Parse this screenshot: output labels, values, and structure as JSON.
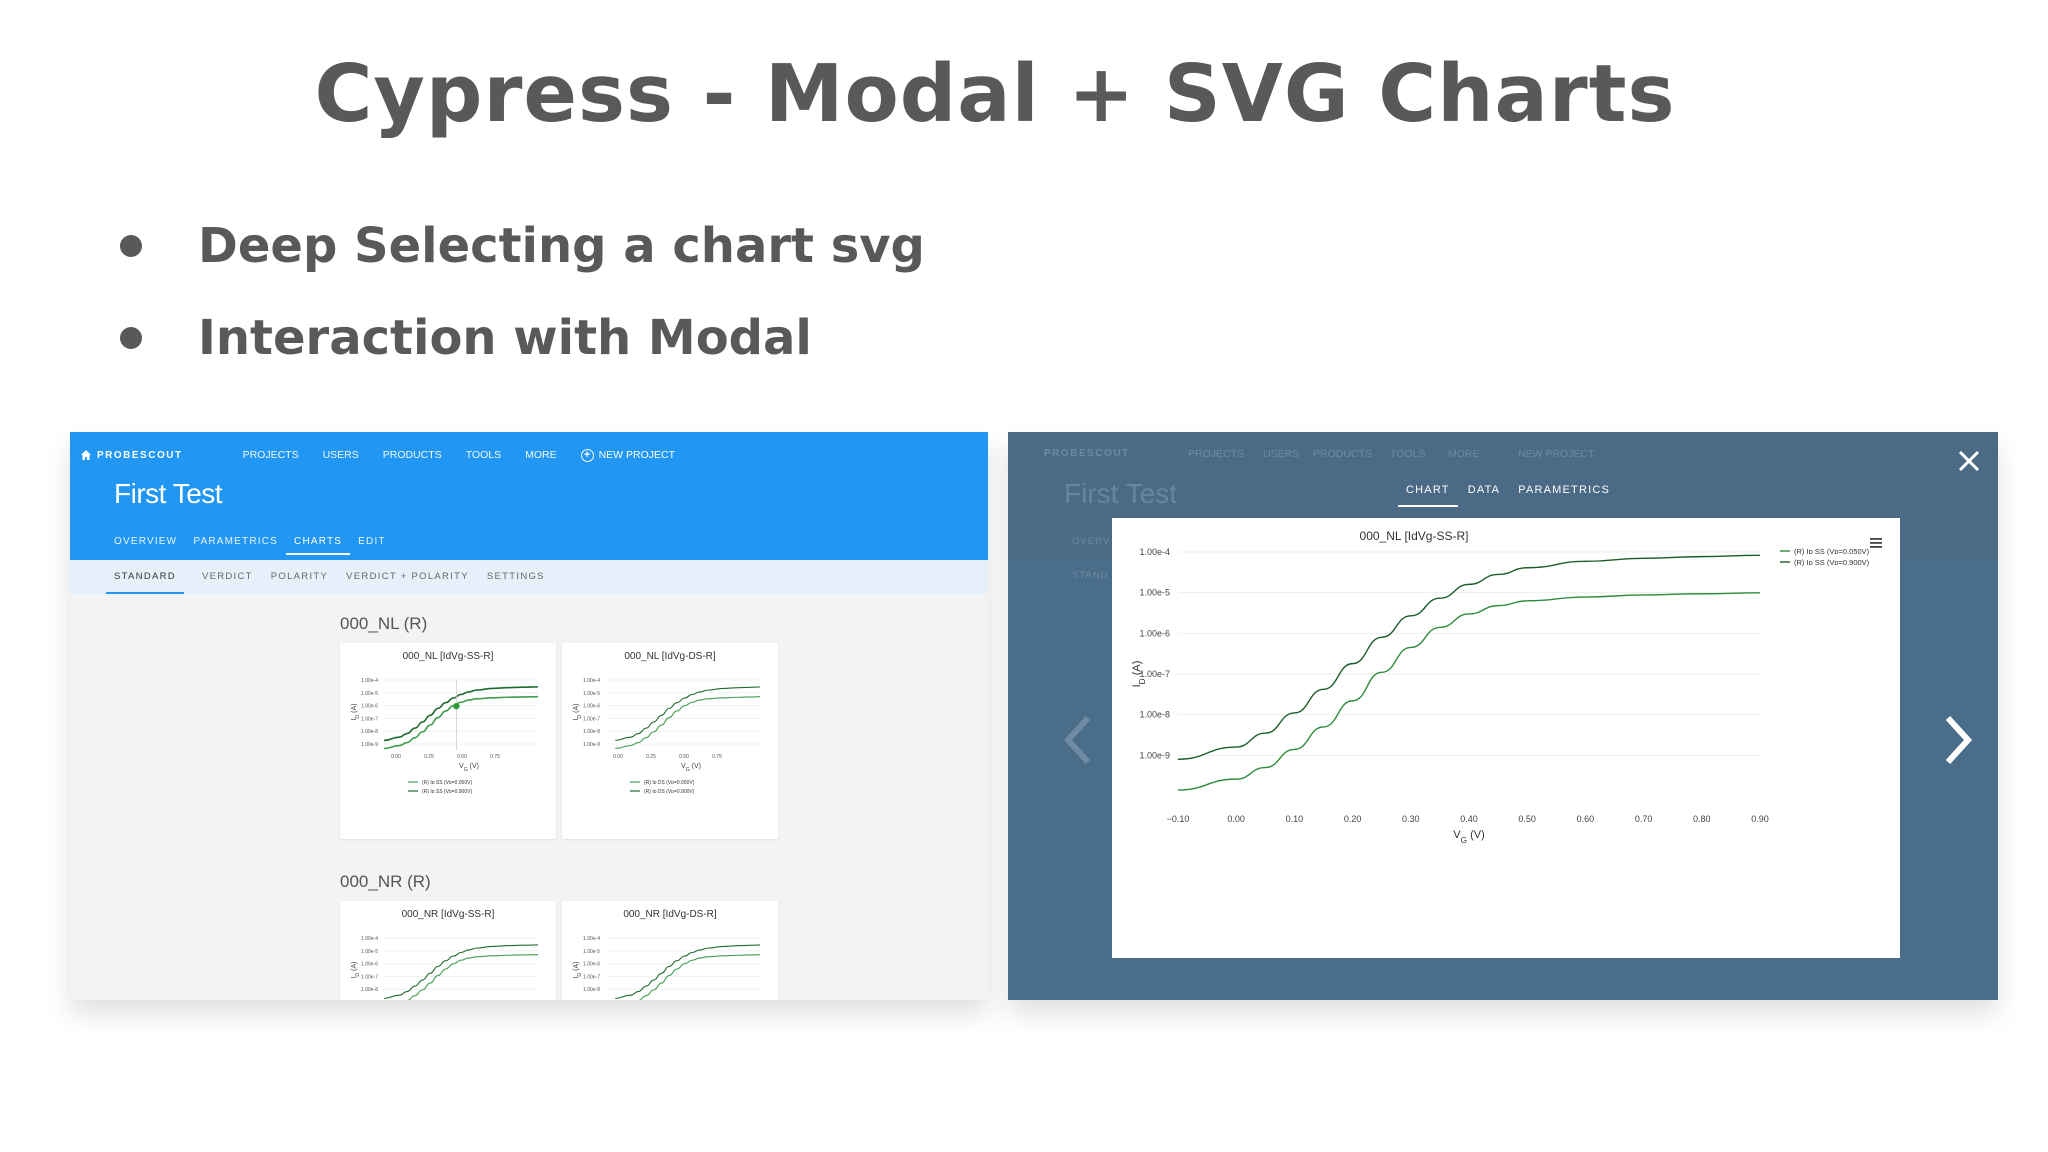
{
  "slide": {
    "title": "Cypress - Modal + SVG Charts",
    "bullets": [
      "Deep Selecting a chart svg",
      "Interaction with Modal"
    ]
  },
  "app": {
    "brand": "PROBESCOUT",
    "nav": [
      "PROJECTS",
      "USERS",
      "PRODUCTS",
      "TOOLS",
      "MORE"
    ],
    "new_project": "NEW PROJECT",
    "page_title": "First Test",
    "tabs": [
      "OVERVIEW",
      "PARAMETRICS",
      "CHARTS",
      "EDIT"
    ],
    "active_tab": "CHARTS",
    "subtabs": [
      "STANDARD",
      "VERDICT",
      "POLARITY",
      "VERDICT + POLARITY",
      "SETTINGS"
    ],
    "active_subtab": "STANDARD",
    "groups": [
      {
        "title": "000_NL (R)",
        "cards": [
          {
            "title": "000_NL [IdVg-SS-R]",
            "legend": [
              "(R) I_D SS (V_D=0.050V)",
              "(R) I_D SS (V_D=0.900V)"
            ]
          },
          {
            "title": "000_NL [IdVg-DS-R]",
            "legend": [
              "(R) I_D DS (V_D=0.050V)",
              "(R) I_D DS (V_D=0.900V)"
            ]
          }
        ]
      },
      {
        "title": "000_NR (R)",
        "cards": [
          {
            "title": "000_NR [IdVg-SS-R]",
            "legend": []
          },
          {
            "title": "000_NR [IdVg-DS-R]",
            "legend": []
          }
        ]
      }
    ],
    "mini_axis": {
      "yticks": [
        "1.00e-4",
        "1.00e-5",
        "1.00e-6",
        "1.00e-7",
        "1.00e-8",
        "1.00e-9"
      ],
      "xticks": [
        "0.00",
        "0.25",
        "0.50",
        "0.75"
      ],
      "ylabel": "I_D (A)",
      "xlabel": "V_G (V)"
    }
  },
  "modal": {
    "tabs": [
      "CHART",
      "DATA",
      "PARAMETRICS"
    ],
    "active_tab": "CHART",
    "ghost_title": "First Test",
    "ghost_tabs": [
      "OVERV",
      "STAND"
    ]
  },
  "colors": {
    "appbar": "#2196f3",
    "series_dark": "#1b6e2c",
    "series_light": "#43a047",
    "overlay": "#4a6d8a"
  },
  "chart_data": {
    "type": "line",
    "title": "000_NL [IdVg-SS-R]",
    "xlabel": "V_G (V)",
    "ylabel": "I_D (A)",
    "yscale": "log",
    "x_ticks": [
      "-0.10",
      "0.00",
      "0.10",
      "0.20",
      "0.30",
      "0.40",
      "0.50",
      "0.60",
      "0.70",
      "0.80",
      "0.90"
    ],
    "y_ticks": [
      "1.00e-4",
      "1.00e-5",
      "1.00e-6",
      "1.00e-7",
      "1.00e-8",
      "1.00e-9"
    ],
    "xlim": [
      -0.1,
      0.9
    ],
    "ylim": [
      1e-10,
      0.0001
    ],
    "legend_position": "top-right",
    "series": [
      {
        "name": "(R) I_D SS (V_D=0.050V)",
        "color": "#2e8b3e",
        "x": [
          -0.1,
          0.0,
          0.05,
          0.1,
          0.15,
          0.2,
          0.25,
          0.3,
          0.35,
          0.4,
          0.45,
          0.5,
          0.6,
          0.7,
          0.8,
          0.9
        ],
        "y": [
          1.4e-10,
          2.6e-10,
          5e-10,
          1.4e-09,
          5e-09,
          2.2e-08,
          1.1e-07,
          4.5e-07,
          1.4e-06,
          3e-06,
          4.8e-06,
          6.3e-06,
          7.8e-06,
          8.8e-06,
          9.4e-06,
          9.9e-06
        ]
      },
      {
        "name": "(R) I_D SS (V_D=0.900V)",
        "color": "#1b5e28",
        "x": [
          -0.1,
          0.0,
          0.05,
          0.1,
          0.15,
          0.2,
          0.25,
          0.3,
          0.35,
          0.4,
          0.45,
          0.5,
          0.6,
          0.7,
          0.8,
          0.9
        ],
        "y": [
          8e-10,
          1.6e-09,
          3.5e-09,
          1.1e-08,
          4.2e-08,
          1.8e-07,
          8e-07,
          2.7e-06,
          7.3e-06,
          1.6e-05,
          2.8e-05,
          4.1e-05,
          5.9e-05,
          7e-05,
          7.7e-05,
          8.3e-05
        ]
      }
    ]
  }
}
